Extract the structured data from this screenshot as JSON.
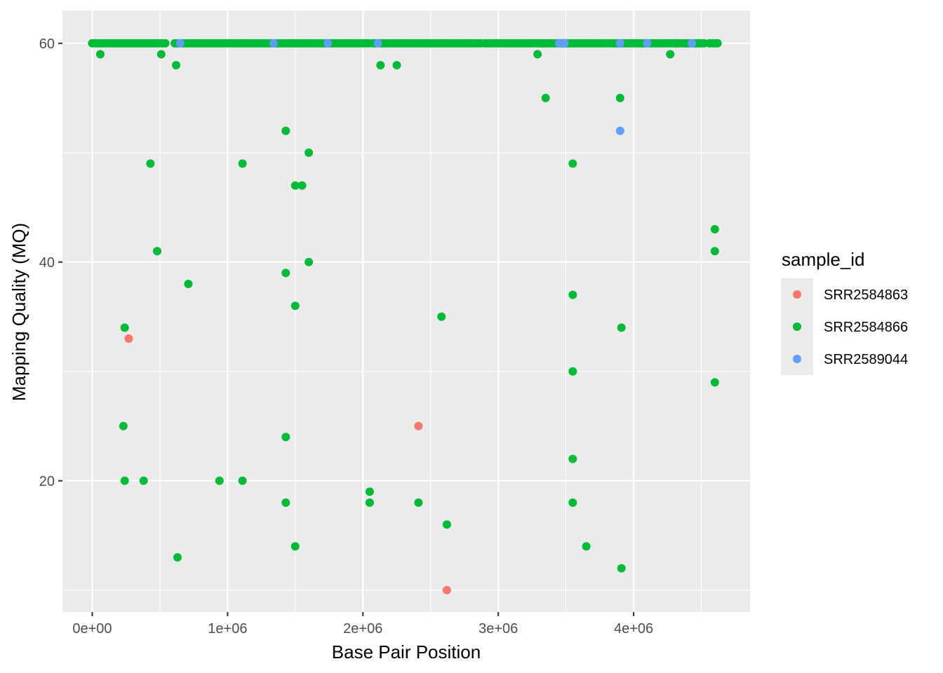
{
  "chart_data": {
    "type": "scatter",
    "title": "",
    "xlabel": "Base Pair Position",
    "ylabel": "Mapping Quality (MQ)",
    "xlim": [
      -220000,
      4860000
    ],
    "ylim": [
      8,
      63
    ],
    "x_ticks": [
      0,
      1000000,
      2000000,
      3000000,
      4000000
    ],
    "x_tick_labels": [
      "0e+00",
      "1e+06",
      "2e+06",
      "3e+06",
      "4e+06"
    ],
    "y_ticks": [
      20,
      40,
      60
    ],
    "y_tick_labels": [
      "20",
      "40",
      "60"
    ],
    "grid": true,
    "legend": {
      "title": "sample_id",
      "position": "right",
      "entries": [
        "SRR2584863",
        "SRR2584866",
        "SRR2589044"
      ]
    },
    "colors": {
      "SRR2584863": "#F8766D",
      "SRR2584866": "#00BA38",
      "SRR2589044": "#619CFF",
      "panel": "#EBEBEB",
      "gridline": "#FFFFFF"
    },
    "series": [
      {
        "name": "SRR2584866",
        "points": [
          [
            60000,
            59
          ],
          [
            510000,
            59
          ],
          [
            620000,
            58
          ],
          [
            2130000,
            58
          ],
          [
            2250000,
            58
          ],
          [
            3290000,
            59
          ],
          [
            4270000,
            59
          ],
          [
            3350000,
            55
          ],
          [
            3900000,
            55
          ],
          [
            1430000,
            52
          ],
          [
            1600000,
            50
          ],
          [
            430000,
            49
          ],
          [
            1110000,
            49
          ],
          [
            3550000,
            49
          ],
          [
            1500000,
            47
          ],
          [
            1550000,
            47
          ],
          [
            4600000,
            43
          ],
          [
            480000,
            41
          ],
          [
            4600000,
            41
          ],
          [
            1600000,
            40
          ],
          [
            1430000,
            39
          ],
          [
            710000,
            38
          ],
          [
            3550000,
            37
          ],
          [
            1500000,
            36
          ],
          [
            2580000,
            35
          ],
          [
            240000,
            34
          ],
          [
            3910000,
            34
          ],
          [
            3550000,
            30
          ],
          [
            4600000,
            29
          ],
          [
            230000,
            25
          ],
          [
            1430000,
            24
          ],
          [
            3550000,
            22
          ],
          [
            240000,
            20
          ],
          [
            380000,
            20
          ],
          [
            940000,
            20
          ],
          [
            1110000,
            20
          ],
          [
            2050000,
            19
          ],
          [
            1430000,
            18
          ],
          [
            2050000,
            18
          ],
          [
            2410000,
            18
          ],
          [
            3550000,
            18
          ],
          [
            2620000,
            16
          ],
          [
            1500000,
            14
          ],
          [
            3650000,
            14
          ],
          [
            630000,
            13
          ],
          [
            3910000,
            12
          ]
        ],
        "top_band": {
          "y": 60,
          "x_ranges": [
            [
              0,
              540000
            ],
            [
              610000,
              1340000
            ],
            [
              1360000,
              2040000
            ],
            [
              2070000,
              2870000
            ],
            [
              2900000,
              3500000
            ],
            [
              3500000,
              3980000
            ],
            [
              4000000,
              4310000
            ],
            [
              4320000,
              4520000
            ],
            [
              4560000,
              4620000
            ]
          ]
        }
      },
      {
        "name": "SRR2584863",
        "points": [
          [
            270000,
            33
          ],
          [
            2410000,
            25
          ],
          [
            2620000,
            10
          ]
        ]
      },
      {
        "name": "SRR2589044",
        "points": [
          [
            650000,
            60
          ],
          [
            1340000,
            60
          ],
          [
            1740000,
            60
          ],
          [
            2110000,
            60
          ],
          [
            3450000,
            60
          ],
          [
            3490000,
            60
          ],
          [
            3900000,
            60
          ],
          [
            4100000,
            60
          ],
          [
            4430000,
            60
          ],
          [
            3900000,
            52
          ]
        ]
      }
    ]
  }
}
